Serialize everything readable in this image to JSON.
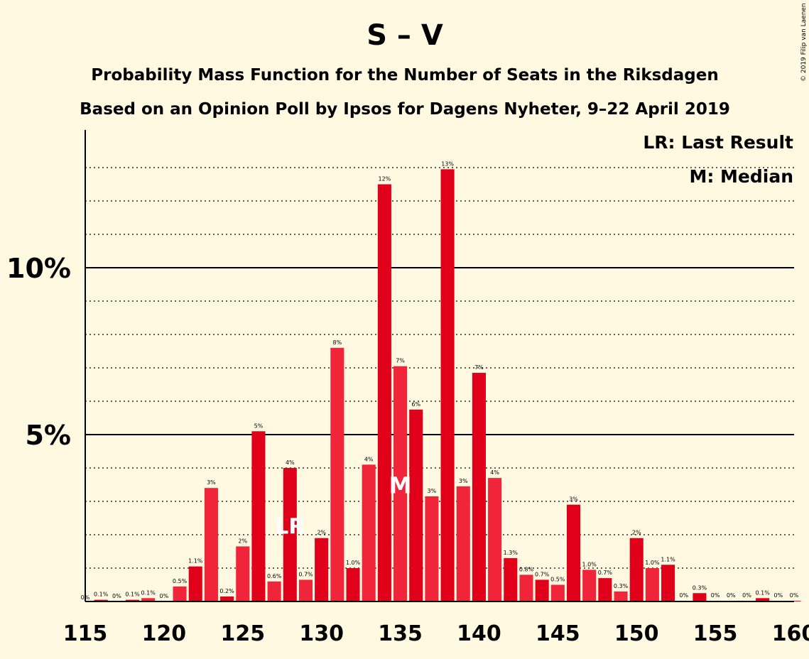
{
  "chart_data": {
    "type": "bar",
    "title": "S – V",
    "subtitle_1": "Probability Mass Function for the Number of Seats in the Riksdagen",
    "subtitle_2": "Based on an Opinion Poll by Ipsos for Dagens Nyheter, 9–22 April 2019",
    "copyright": "© 2019 Filip van Laenen",
    "legend": [
      "LR: Last Result",
      "M: Median"
    ],
    "legend_position": "top-right",
    "xlim": [
      115,
      160
    ],
    "ylim": [
      0,
      14
    ],
    "x_ticks": [
      "115",
      "120",
      "125",
      "130",
      "135",
      "140",
      "145",
      "150",
      "155",
      "160"
    ],
    "y_ticks": [
      {
        "value": 5,
        "label": "5%"
      },
      {
        "value": 10,
        "label": "10%"
      }
    ],
    "grid": "dotted every 1%, solid at 5% and 10%",
    "bar_colors": [
      "#e0001a",
      "#f0253a"
    ],
    "seats": [
      116,
      117,
      118,
      119,
      120,
      121,
      122,
      123,
      124,
      125,
      126,
      127,
      128,
      129,
      130,
      131,
      132,
      133,
      134,
      135,
      136,
      137,
      138,
      139,
      140,
      141,
      142,
      143,
      144,
      145,
      146,
      147,
      148,
      149,
      150,
      151,
      152,
      153,
      154,
      155,
      156,
      157,
      158,
      159,
      160
    ],
    "values": [
      0.05,
      0.0,
      0.05,
      0.1,
      0.0,
      0.45,
      1.05,
      3.4,
      0.15,
      1.65,
      5.1,
      0.6,
      4.0,
      0.65,
      1.9,
      7.6,
      1.0,
      4.1,
      12.5,
      7.05,
      5.75,
      3.15,
      12.95,
      3.45,
      6.85,
      3.7,
      1.3,
      0.8,
      0.65,
      0.5,
      2.9,
      0.95,
      0.7,
      0.3,
      1.9,
      1.0,
      1.1,
      0.02,
      0.25,
      0.02,
      0.02,
      0.02,
      0.1,
      0.02,
      0.02
    ],
    "labels": [
      "0.1%",
      "0%",
      "0.1%",
      "0.1%",
      "0%",
      "0.5%",
      "1.1%",
      "3%",
      "0.2%",
      "2%",
      "5%",
      "0.6%",
      "4%",
      "0.7%",
      "2%",
      "8%",
      "1.0%",
      "4%",
      "12%",
      "7%",
      "6%",
      "3%",
      "13%",
      "3%",
      "7%",
      "4%",
      "1.3%",
      "0.8%",
      "0.7%",
      "0.5%",
      "3%",
      "1.0%",
      "0.7%",
      "0.3%",
      "2%",
      "1.0%",
      "1.1%",
      "0%",
      "0.3%",
      "0%",
      "0%",
      "0%",
      "0.1%",
      "0%",
      "0%"
    ],
    "zero_label_115": "0%",
    "last_result": {
      "seat": 128,
      "marker": "LR"
    },
    "median": {
      "seat": 135,
      "marker": "M"
    }
  }
}
